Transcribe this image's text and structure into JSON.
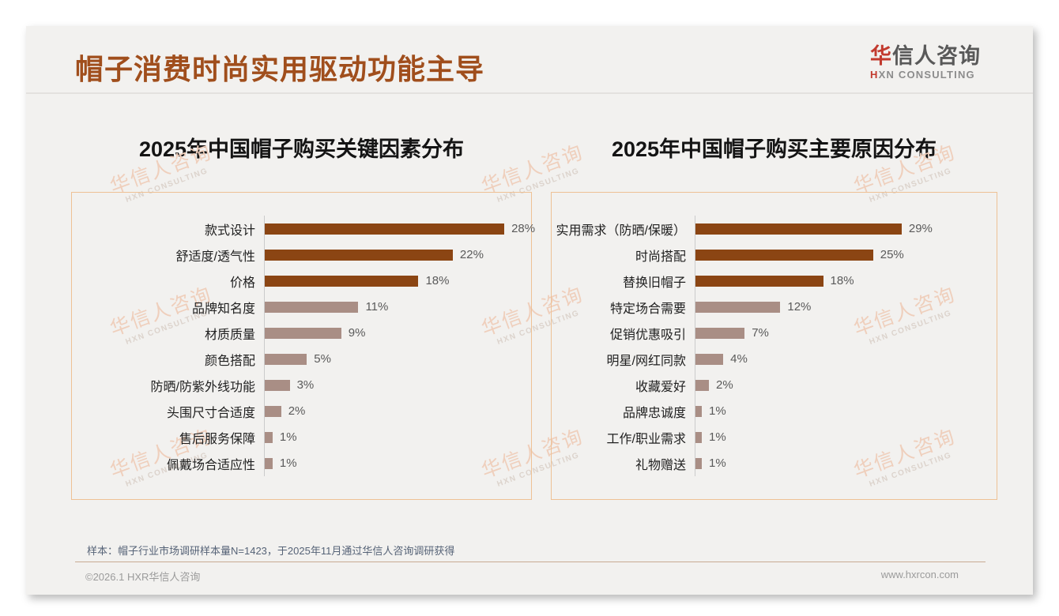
{
  "header": {
    "title": "帽子消费时尚实用驱动功能主导",
    "logo": {
      "cn_first": "华",
      "cn_rest": "信人咨询",
      "en_first": "H",
      "en_rest": "XN CONSULTING"
    }
  },
  "watermark": {
    "line1": "华信人咨询",
    "line2": "HXN CONSULTING"
  },
  "chart_data": [
    {
      "type": "bar",
      "orientation": "horizontal",
      "title": "2025年中国帽子购买关键因素分布",
      "categories": [
        "款式设计",
        "舒适度/透气性",
        "价格",
        "品牌知名度",
        "材质质量",
        "颜色搭配",
        "防晒/防紫外线功能",
        "头围尺寸合适度",
        "售后服务保障",
        "佩戴场合适应性"
      ],
      "values": [
        28,
        22,
        18,
        11,
        9,
        5,
        3,
        2,
        1,
        1
      ],
      "value_labels": [
        "28%",
        "22%",
        "18%",
        "11%",
        "9%",
        "5%",
        "3%",
        "2%",
        "1%",
        "1%"
      ],
      "unit": "%",
      "xlim": [
        0,
        31
      ],
      "highlighted_top_n": 3,
      "grid": false,
      "legend": false
    },
    {
      "type": "bar",
      "orientation": "horizontal",
      "title": "2025年中国帽子购买主要原因分布",
      "categories": [
        "实用需求（防晒/保暖）",
        "时尚搭配",
        "替换旧帽子",
        "特定场合需要",
        "促销优惠吸引",
        "明星/网红同款",
        "收藏爱好",
        "品牌忠诚度",
        "工作/职业需求",
        "礼物赠送"
      ],
      "values": [
        29,
        25,
        18,
        12,
        7,
        4,
        2,
        1,
        1,
        1
      ],
      "value_labels": [
        "29%",
        "25%",
        "18%",
        "12%",
        "7%",
        "4%",
        "2%",
        "1%",
        "1%",
        "1%"
      ],
      "unit": "%",
      "xlim": [
        0,
        42
      ],
      "highlighted_top_n": 3,
      "grid": false,
      "legend": false
    }
  ],
  "colors": {
    "bar_highlight": "#8B4513",
    "bar_normal": "#A98E85",
    "title": "#A04E1C",
    "panel_border": "#EEC195",
    "slide_bg": "#F2F1EF",
    "logo_red": "#C23A2E"
  },
  "footnote": "样本：帽子行业市场调研样本量N=1423，于2025年11月通过华信人咨询调研获得",
  "footer": {
    "left": "©2026.1 HXR华信人咨询",
    "right": "www.hxrcon.com"
  }
}
